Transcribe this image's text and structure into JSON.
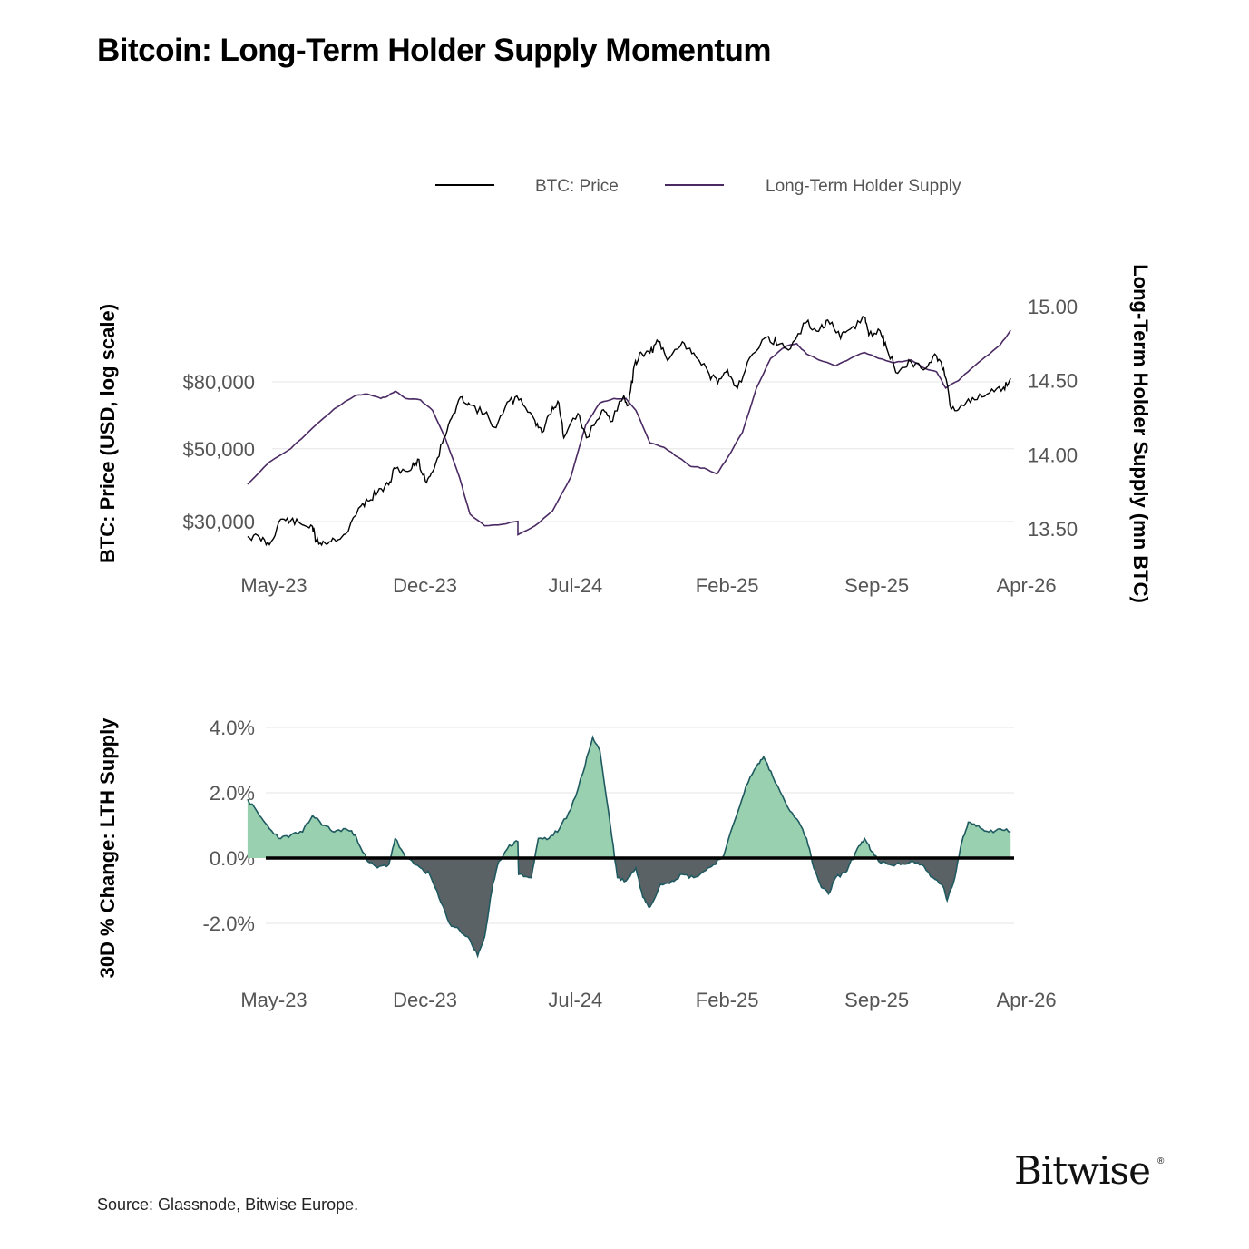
{
  "title": "Bitcoin: Long-Term Holder Supply Momentum",
  "source": "Source: Glassnode, Bitwise Europe.",
  "brand": {
    "name": "Bitwise",
    "mark": "®"
  },
  "legend": {
    "items": [
      "BTC: Price",
      "Long-Term Holder Supply"
    ],
    "placement": "top-right"
  },
  "colors": {
    "price": "#000000",
    "lth": "#4b2a63",
    "positive": "#98d0b0",
    "negative": "#5b6266",
    "area_edge": "#1f5a60",
    "grid": "#e6e6e6",
    "zero": "#000000"
  },
  "chart_data": [
    {
      "type": "line",
      "title": "",
      "ylabel": "BTC: Price (USD, log scale)",
      "y2label": "Long-Term Holder Supply (mn BTC)",
      "yscale": "log",
      "grid": "horizontal",
      "x_tick_labels": [
        "May-23",
        "Dec-23",
        "Jul-24",
        "Feb-25",
        "Sep-25",
        "Apr-26"
      ],
      "x_tick_dates": [
        "2023-05-01",
        "2023-12-01",
        "2024-07-01",
        "2025-02-01",
        "2025-09-01",
        "2026-04-01"
      ],
      "x_range": [
        "2023-05-01",
        "2026-05-01"
      ],
      "y_ticks": [
        30000,
        50000,
        80000
      ],
      "y_tick_labels": [
        "$30,000",
        "$50,000",
        "$80,000"
      ],
      "y_range": [
        20000,
        170000
      ],
      "y2_ticks": [
        13.5,
        14.0,
        14.5,
        15.0
      ],
      "y2_tick_labels": [
        "13.50",
        "14.00",
        "14.50",
        "15.00"
      ],
      "y2_range": [
        13.2,
        15.15
      ],
      "series": [
        {
          "name": "BTC: Price",
          "axis": "left",
          "points": [
            [
              "2023-05-15",
              27000
            ],
            [
              "2023-06-01",
              26800
            ],
            [
              "2023-06-15",
              25500
            ],
            [
              "2023-07-01",
              30500
            ],
            [
              "2023-07-15",
              30200
            ],
            [
              "2023-08-01",
              29300
            ],
            [
              "2023-08-15",
              29000
            ],
            [
              "2023-08-20",
              26100
            ],
            [
              "2023-09-01",
              25900
            ],
            [
              "2023-09-15",
              26500
            ],
            [
              "2023-10-01",
              27500
            ],
            [
              "2023-10-23",
              33500
            ],
            [
              "2023-11-01",
              34700
            ],
            [
              "2023-11-15",
              36800
            ],
            [
              "2023-12-01",
              38800
            ],
            [
              "2023-12-10",
              43500
            ],
            [
              "2024-01-01",
              43000
            ],
            [
              "2024-01-11",
              46500
            ],
            [
              "2024-01-22",
              39800
            ],
            [
              "2024-02-01",
              42500
            ],
            [
              "2024-02-15",
              52000
            ],
            [
              "2024-02-28",
              62000
            ],
            [
              "2024-03-14",
              72000
            ],
            [
              "2024-03-25",
              68000
            ],
            [
              "2024-04-15",
              64000
            ],
            [
              "2024-05-01",
              58000
            ],
            [
              "2024-05-20",
              70000
            ],
            [
              "2024-06-05",
              71000
            ],
            [
              "2024-06-25",
              61000
            ],
            [
              "2024-07-05",
              56000
            ],
            [
              "2024-07-20",
              67000
            ],
            [
              "2024-07-29",
              69000
            ],
            [
              "2024-08-05",
              54000
            ],
            [
              "2024-08-25",
              64000
            ],
            [
              "2024-09-06",
              54000
            ],
            [
              "2024-09-28",
              65500
            ],
            [
              "2024-10-10",
              60500
            ],
            [
              "2024-10-29",
              72500
            ],
            [
              "2024-11-05",
              68000
            ],
            [
              "2024-11-13",
              90000
            ],
            [
              "2024-11-22",
              98500
            ],
            [
              "2024-12-05",
              98000
            ],
            [
              "2024-12-17",
              106000
            ],
            [
              "2024-12-30",
              93000
            ],
            [
              "2025-01-20",
              106000
            ],
            [
              "2025-02-05",
              98000
            ],
            [
              "2025-02-27",
              84500
            ],
            [
              "2025-03-11",
              79000
            ],
            [
              "2025-03-25",
              87000
            ],
            [
              "2025-04-08",
              76500
            ],
            [
              "2025-04-25",
              94500
            ],
            [
              "2025-05-22",
              110000
            ],
            [
              "2025-06-05",
              104000
            ],
            [
              "2025-06-22",
              101000
            ],
            [
              "2025-07-14",
              121000
            ],
            [
              "2025-08-01",
              114000
            ],
            [
              "2025-08-14",
              123500
            ],
            [
              "2025-09-01",
              108500
            ],
            [
              "2025-09-15",
              116000
            ],
            [
              "2025-10-06",
              125500
            ],
            [
              "2025-10-11",
              111000
            ],
            [
              "2025-10-27",
              114500
            ],
            [
              "2025-11-05",
              102000
            ],
            [
              "2025-11-21",
              85000
            ],
            [
              "2025-12-10",
              92000
            ],
            [
              "2025-12-31",
              88000
            ],
            [
              "2026-01-15",
              96000
            ],
            [
              "2026-01-25",
              88000
            ],
            [
              "2026-02-05",
              66000
            ],
            [
              "2026-02-20",
              68000
            ],
            [
              "2026-03-10",
              70500
            ],
            [
              "2026-03-31",
              74000
            ],
            [
              "2026-04-20",
              77000
            ],
            [
              "2026-04-30",
              82000
            ]
          ]
        },
        {
          "name": "Long-Term Holder Supply",
          "axis": "right",
          "points": [
            [
              "2023-05-15",
              13.8
            ],
            [
              "2023-06-15",
              13.95
            ],
            [
              "2023-07-15",
              14.04
            ],
            [
              "2023-08-15",
              14.18
            ],
            [
              "2023-09-15",
              14.31
            ],
            [
              "2023-10-15",
              14.4
            ],
            [
              "2023-11-01",
              14.41
            ],
            [
              "2023-11-20",
              14.38
            ],
            [
              "2023-12-01",
              14.4
            ],
            [
              "2023-12-10",
              14.43
            ],
            [
              "2023-12-25",
              14.38
            ],
            [
              "2024-01-15",
              14.37
            ],
            [
              "2024-02-01",
              14.3
            ],
            [
              "2024-02-20",
              14.1
            ],
            [
              "2024-03-10",
              13.85
            ],
            [
              "2024-03-25",
              13.6
            ],
            [
              "2024-04-15",
              13.52
            ],
            [
              "2024-05-10",
              13.53
            ],
            [
              "2024-06-01",
              13.55
            ],
            [
              "2024-06-01",
              13.46
            ],
            [
              "2024-06-25",
              13.52
            ],
            [
              "2024-07-20",
              13.62
            ],
            [
              "2024-08-15",
              13.85
            ],
            [
              "2024-09-05",
              14.2
            ],
            [
              "2024-09-25",
              14.35
            ],
            [
              "2024-10-15",
              14.38
            ],
            [
              "2024-11-01",
              14.38
            ],
            [
              "2024-11-15",
              14.3
            ],
            [
              "2024-12-05",
              14.08
            ],
            [
              "2024-12-25",
              14.05
            ],
            [
              "2025-01-15",
              13.98
            ],
            [
              "2025-02-01",
              13.92
            ],
            [
              "2025-02-20",
              13.91
            ],
            [
              "2025-03-10",
              13.87
            ],
            [
              "2025-03-25",
              13.98
            ],
            [
              "2025-04-15",
              14.15
            ],
            [
              "2025-05-05",
              14.45
            ],
            [
              "2025-05-25",
              14.65
            ],
            [
              "2025-06-15",
              14.73
            ],
            [
              "2025-07-01",
              14.75
            ],
            [
              "2025-07-15",
              14.68
            ],
            [
              "2025-08-01",
              14.64
            ],
            [
              "2025-08-25",
              14.6
            ],
            [
              "2025-09-15",
              14.65
            ],
            [
              "2025-10-05",
              14.69
            ],
            [
              "2025-10-25",
              14.65
            ],
            [
              "2025-11-15",
              14.62
            ],
            [
              "2025-12-10",
              14.64
            ],
            [
              "2025-12-31",
              14.58
            ],
            [
              "2026-01-15",
              14.56
            ],
            [
              "2026-01-28",
              14.45
            ],
            [
              "2026-02-15",
              14.5
            ],
            [
              "2026-03-05",
              14.58
            ],
            [
              "2026-03-25",
              14.66
            ],
            [
              "2026-04-15",
              14.74
            ],
            [
              "2026-04-30",
              14.84
            ]
          ]
        }
      ]
    },
    {
      "type": "area",
      "title": "",
      "ylabel": "30D % Change: LTH Supply",
      "grid": "horizontal",
      "x_tick_labels": [
        "May-23",
        "Dec-23",
        "Jul-24",
        "Feb-25",
        "Sep-25",
        "Apr-26"
      ],
      "x_tick_dates": [
        "2023-05-01",
        "2023-12-01",
        "2024-07-01",
        "2025-02-01",
        "2025-09-01",
        "2026-04-01"
      ],
      "x_range": [
        "2023-05-01",
        "2026-05-01"
      ],
      "y_ticks": [
        -2.0,
        0.0,
        2.0,
        4.0
      ],
      "y_tick_labels": [
        "-2.0%",
        "0.0%",
        "2.0%",
        "4.0%"
      ],
      "y_range": [
        -3.5,
        4.7
      ],
      "series": [
        {
          "name": "",
          "points": [
            [
              "2023-05-15",
              1.8
            ],
            [
              "2023-06-01",
              1.3
            ],
            [
              "2023-06-15",
              0.9
            ],
            [
              "2023-07-01",
              0.6
            ],
            [
              "2023-07-15",
              0.7
            ],
            [
              "2023-08-01",
              0.8
            ],
            [
              "2023-08-15",
              1.3
            ],
            [
              "2023-09-01",
              1.0
            ],
            [
              "2023-09-15",
              0.8
            ],
            [
              "2023-10-01",
              0.9
            ],
            [
              "2023-10-15",
              0.7
            ],
            [
              "2023-11-01",
              -0.1
            ],
            [
              "2023-11-15",
              -0.3
            ],
            [
              "2023-12-01",
              -0.2
            ],
            [
              "2023-12-10",
              0.6
            ],
            [
              "2023-12-25",
              0.0
            ],
            [
              "2024-01-15",
              -0.3
            ],
            [
              "2024-01-28",
              -0.5
            ],
            [
              "2024-02-10",
              -1.2
            ],
            [
              "2024-02-25",
              -2.0
            ],
            [
              "2024-03-10",
              -2.2
            ],
            [
              "2024-03-25",
              -2.5
            ],
            [
              "2024-04-05",
              -3.0
            ],
            [
              "2024-04-15",
              -2.4
            ],
            [
              "2024-04-25",
              -1.0
            ],
            [
              "2024-05-05",
              -0.1
            ],
            [
              "2024-05-20",
              0.4
            ],
            [
              "2024-06-01",
              0.5
            ],
            [
              "2024-06-02",
              -0.5
            ],
            [
              "2024-06-20",
              -0.6
            ],
            [
              "2024-06-30",
              0.6
            ],
            [
              "2024-07-15",
              0.6
            ],
            [
              "2024-07-30",
              0.9
            ],
            [
              "2024-08-15",
              1.5
            ],
            [
              "2024-09-01",
              2.6
            ],
            [
              "2024-09-15",
              3.7
            ],
            [
              "2024-09-25",
              3.3
            ],
            [
              "2024-10-10",
              1.0
            ],
            [
              "2024-10-20",
              -0.6
            ],
            [
              "2024-11-01",
              -0.7
            ],
            [
              "2024-11-15",
              -0.3
            ],
            [
              "2024-11-25",
              -1.2
            ],
            [
              "2024-12-05",
              -1.5
            ],
            [
              "2024-12-20",
              -0.8
            ],
            [
              "2025-01-05",
              -0.7
            ],
            [
              "2025-01-20",
              -0.5
            ],
            [
              "2025-02-05",
              -0.6
            ],
            [
              "2025-02-20",
              -0.4
            ],
            [
              "2025-03-05",
              -0.2
            ],
            [
              "2025-03-20",
              0.1
            ],
            [
              "2025-04-05",
              1.2
            ],
            [
              "2025-04-20",
              2.2
            ],
            [
              "2025-05-05",
              2.8
            ],
            [
              "2025-05-15",
              3.1
            ],
            [
              "2025-05-28",
              2.5
            ],
            [
              "2025-06-15",
              1.7
            ],
            [
              "2025-07-01",
              1.2
            ],
            [
              "2025-07-15",
              0.6
            ],
            [
              "2025-07-25",
              -0.3
            ],
            [
              "2025-08-05",
              -0.9
            ],
            [
              "2025-08-15",
              -1.1
            ],
            [
              "2025-08-25",
              -0.6
            ],
            [
              "2025-09-10",
              -0.4
            ],
            [
              "2025-09-25",
              0.3
            ],
            [
              "2025-10-05",
              0.6
            ],
            [
              "2025-10-15",
              0.2
            ],
            [
              "2025-10-25",
              -0.1
            ],
            [
              "2025-11-10",
              -0.2
            ],
            [
              "2025-11-25",
              -0.2
            ],
            [
              "2025-12-10",
              -0.1
            ],
            [
              "2025-12-25",
              -0.2
            ],
            [
              "2026-01-10",
              -0.6
            ],
            [
              "2026-01-25",
              -0.9
            ],
            [
              "2026-01-30",
              -1.3
            ],
            [
              "2026-02-10",
              -0.6
            ],
            [
              "2026-02-20",
              0.5
            ],
            [
              "2026-03-01",
              1.1
            ],
            [
              "2026-03-15",
              1.0
            ],
            [
              "2026-03-30",
              0.8
            ],
            [
              "2026-04-15",
              0.9
            ],
            [
              "2026-04-30",
              0.8
            ]
          ]
        }
      ]
    }
  ]
}
